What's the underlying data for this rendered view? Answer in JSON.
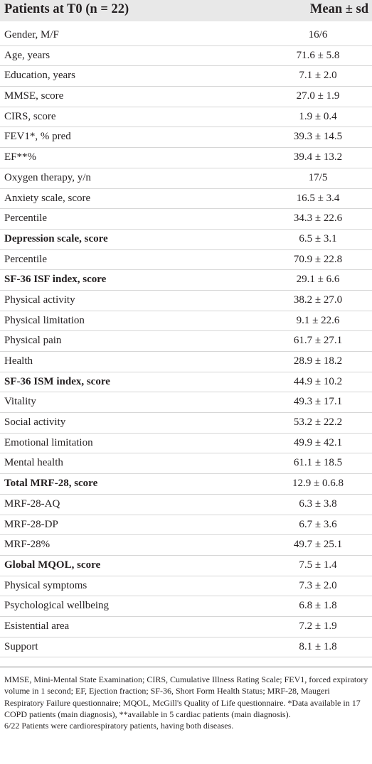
{
  "header": {
    "left": "Patients at T0 (n = 22)",
    "right": "Mean ± sd"
  },
  "rows": [
    {
      "label": "Gender, M/F",
      "value": "16/6",
      "bold": false
    },
    {
      "label": "Age, years",
      "value": "71.6 ± 5.8",
      "bold": false
    },
    {
      "label": "Education, years",
      "value": "7.1 ± 2.0",
      "bold": false
    },
    {
      "label": "MMSE, score",
      "value": "27.0 ± 1.9",
      "bold": false
    },
    {
      "label": "CIRS, score",
      "value": "1.9 ± 0.4",
      "bold": false
    },
    {
      "label": "FEV1*, % pred",
      "value": "39.3 ± 14.5",
      "bold": false
    },
    {
      "label": "EF**%",
      "value": "39.4 ± 13.2",
      "bold": false
    },
    {
      "label": "Oxygen therapy, y/n",
      "value": "17/5",
      "bold": false
    },
    {
      "label": "Anxiety scale, score",
      "value": "16.5 ± 3.4",
      "bold": false
    },
    {
      "label": "Percentile",
      "value": "34.3 ± 22.6",
      "bold": false
    },
    {
      "label": "Depression scale, score",
      "value": "6.5 ± 3.1",
      "bold": true
    },
    {
      "label": "Percentile",
      "value": "70.9 ± 22.8",
      "bold": false
    },
    {
      "label": "SF-36 ISF index, score",
      "value": "29.1 ± 6.6",
      "bold": true
    },
    {
      "label": "Physical activity",
      "value": "38.2 ± 27.0",
      "bold": false
    },
    {
      "label": "Physical limitation",
      "value": "9.1 ± 22.6",
      "bold": false
    },
    {
      "label": "Physical pain",
      "value": "61.7 ± 27.1",
      "bold": false
    },
    {
      "label": "Health",
      "value": "28.9 ± 18.2",
      "bold": false
    },
    {
      "label": "SF-36 ISM index, score",
      "value": "44.9 ± 10.2",
      "bold": true
    },
    {
      "label": "Vitality",
      "value": "49.3 ± 17.1",
      "bold": false
    },
    {
      "label": "Social activity",
      "value": "53.2 ± 22.2",
      "bold": false
    },
    {
      "label": "Emotional limitation",
      "value": "49.9 ± 42.1",
      "bold": false
    },
    {
      "label": "Mental health",
      "value": "61.1 ± 18.5",
      "bold": false
    },
    {
      "label": "Total MRF-28, score",
      "value": "12.9 ± 0.6.8",
      "bold": true
    },
    {
      "label": "MRF-28-AQ",
      "value": "6.3 ± 3.8",
      "bold": false
    },
    {
      "label": "MRF-28-DP",
      "value": "6.7 ± 3.6",
      "bold": false
    },
    {
      "label": "MRF-28%",
      "value": "49.7 ± 25.1",
      "bold": false
    },
    {
      "label": "Global MQOL, score",
      "value": "7.5 ± 1.4",
      "bold": true
    },
    {
      "label": "Physical symptoms",
      "value": "7.3 ± 2.0",
      "bold": false
    },
    {
      "label": "Psychological wellbeing",
      "value": "6.8 ± 1.8",
      "bold": false
    },
    {
      "label": "Esistential area",
      "value": "7.2 ± 1.9",
      "bold": false
    },
    {
      "label": "Support",
      "value": "8.1 ± 1.8",
      "bold": false
    }
  ],
  "footnotes": {
    "abbreviations": "MMSE, Mini-Mental State Examination; CIRS, Cumulative Illness Rating Scale; FEV1, forced expiratory volume in 1 second; EF, Ejection fraction; SF-36, Short Form Health Status; MRF-28, Maugeri Respiratory Failure questionnaire; MQOL, McGill's Quality of Life questionnaire. *Data available in 17 COPD patients (main diagnosis), **available in 5 cardiac patients (main diagnosis).",
    "note": "6/22 Patients were cardiorespiratory patients, having both diseases."
  }
}
